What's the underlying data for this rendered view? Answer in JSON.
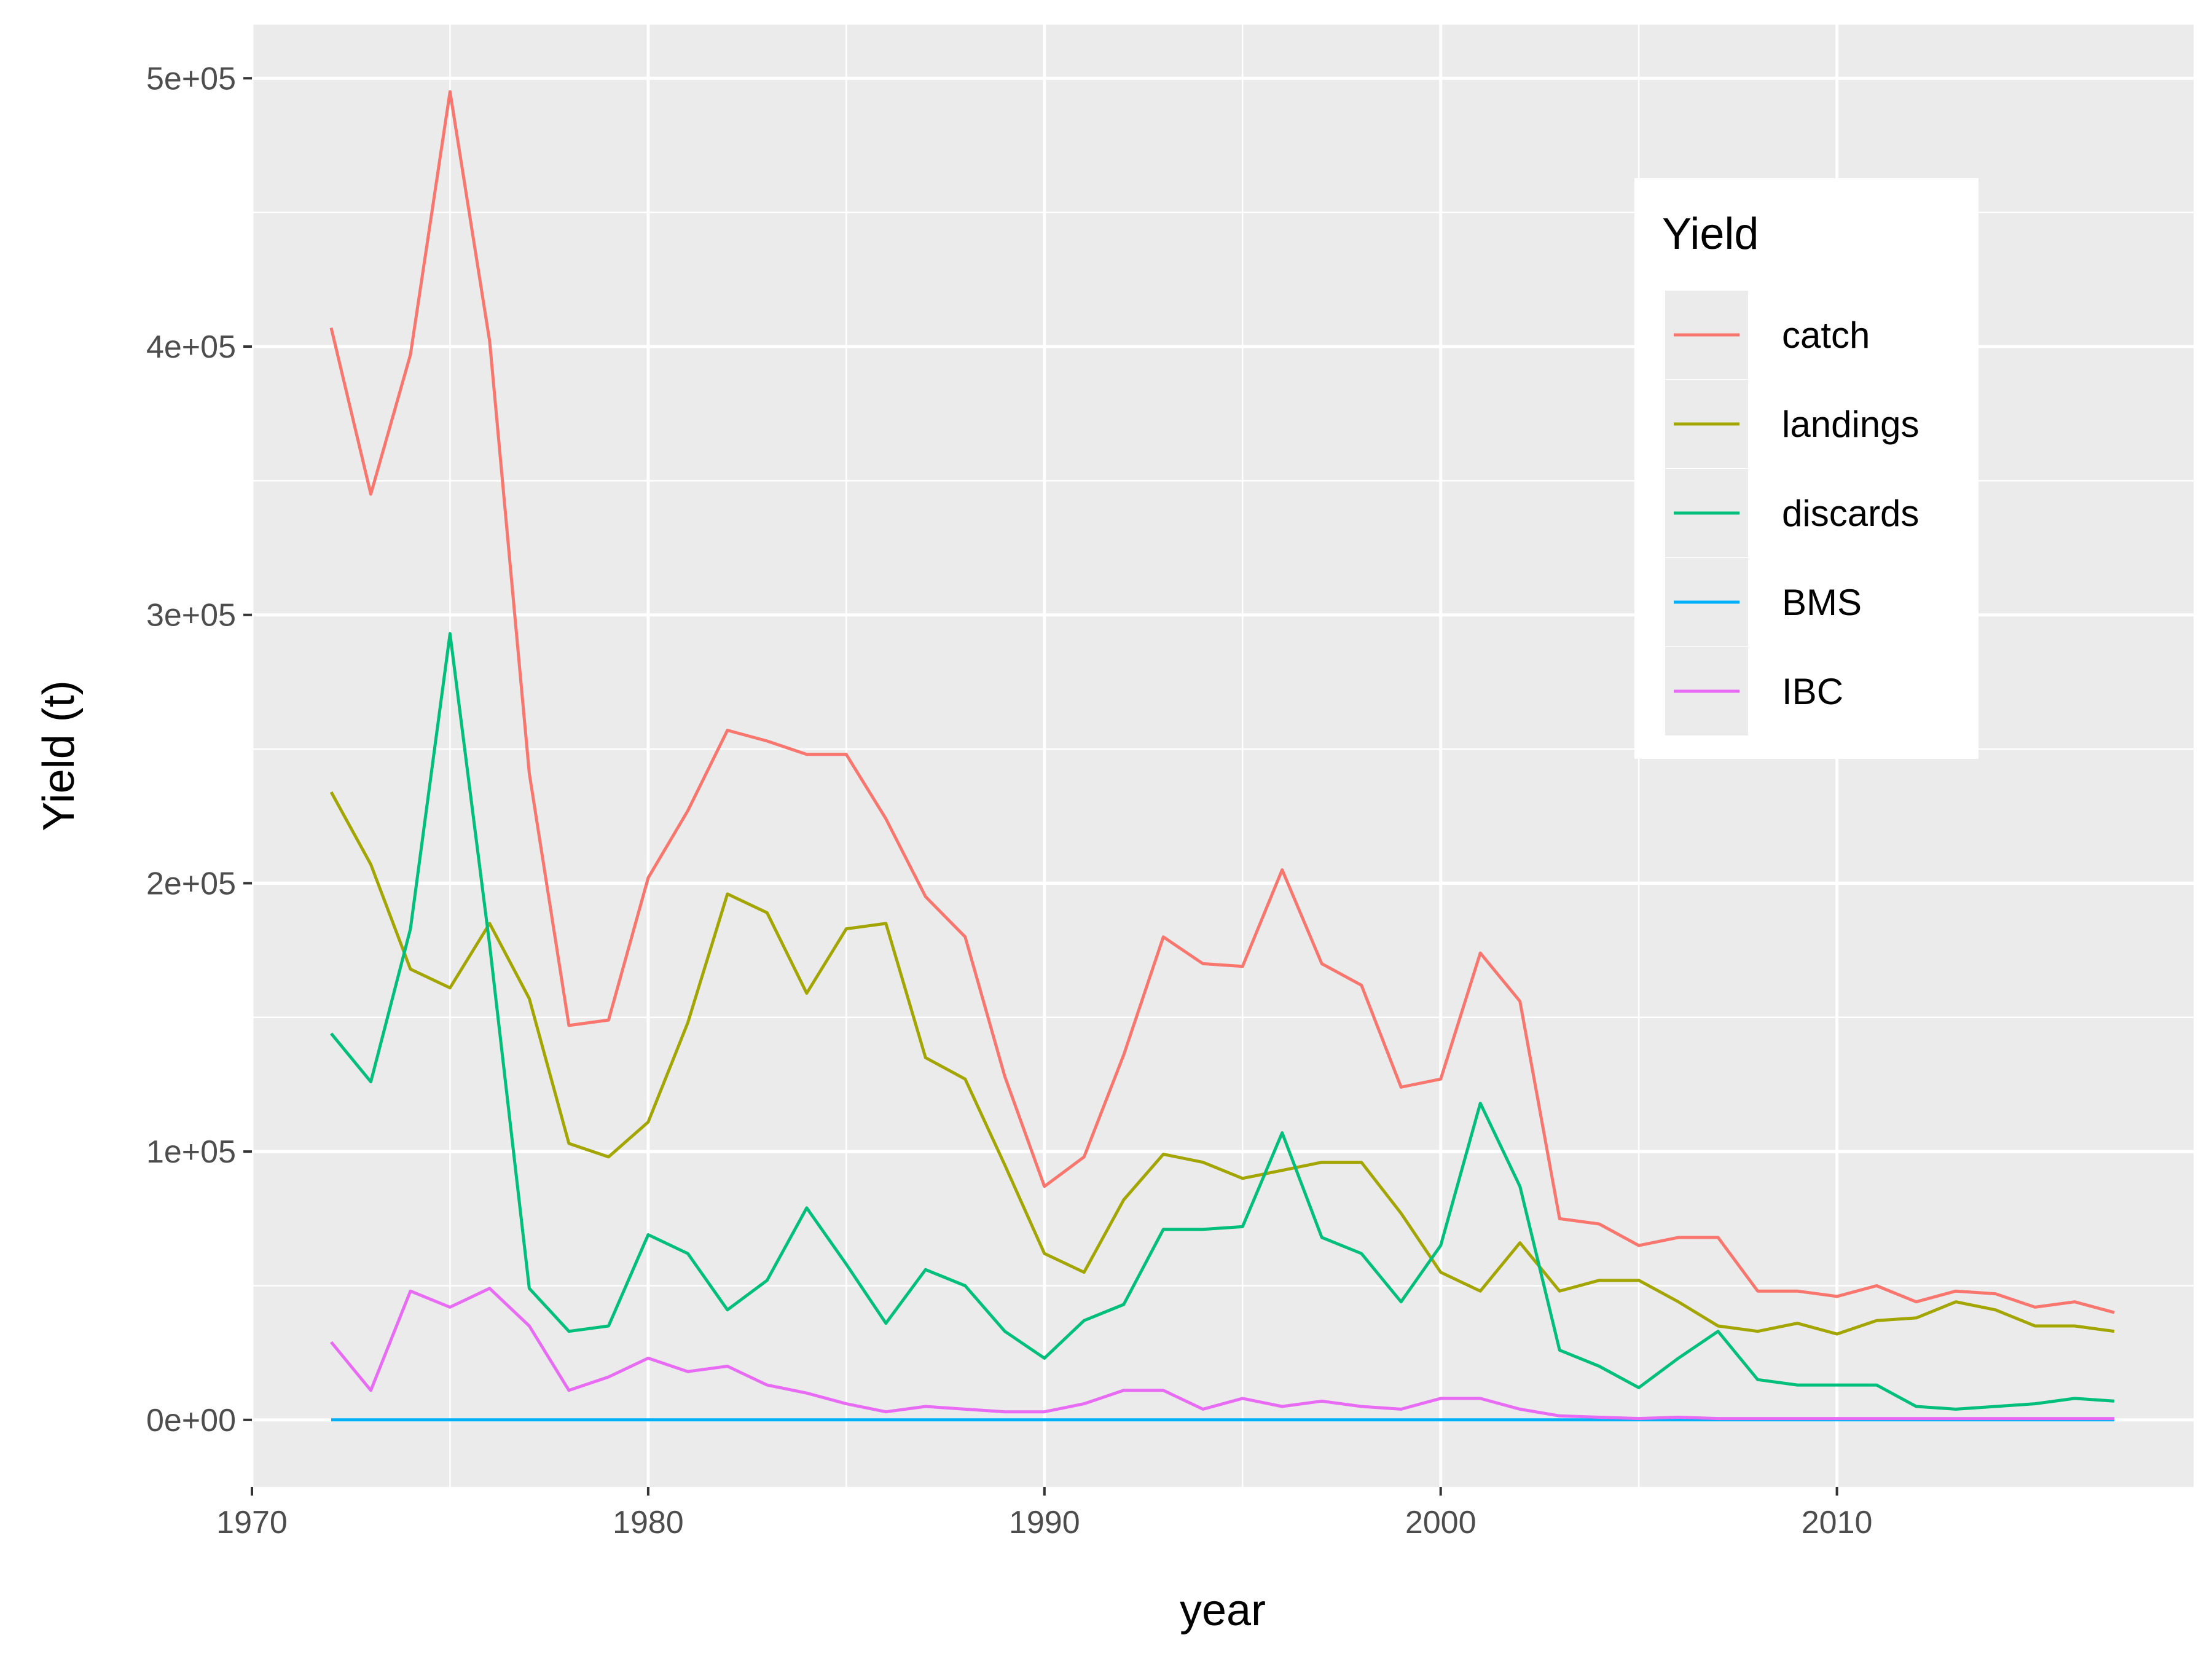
{
  "chart_data": {
    "type": "line",
    "xlabel": "year",
    "ylabel": "Yield (t)",
    "xlim": [
      1970,
      2019
    ],
    "ylim": [
      -25000,
      520000
    ],
    "x_ticks": [
      1970,
      1980,
      1990,
      2000,
      2010
    ],
    "x_tick_labels": [
      "1970",
      "1980",
      "1990",
      "2000",
      "2010"
    ],
    "y_ticks": [
      0,
      100000,
      200000,
      300000,
      400000,
      500000
    ],
    "y_tick_labels": [
      "0e+00",
      "1e+05",
      "2e+05",
      "3e+05",
      "4e+05",
      "5e+05"
    ],
    "grid": true,
    "background": "#ebebeb",
    "legend": {
      "title": "Yield",
      "position": "top-right"
    },
    "x": [
      1972,
      1973,
      1974,
      1975,
      1976,
      1977,
      1978,
      1979,
      1980,
      1981,
      1982,
      1983,
      1984,
      1985,
      1986,
      1987,
      1988,
      1989,
      1990,
      1991,
      1992,
      1993,
      1994,
      1995,
      1996,
      1997,
      1998,
      1999,
      2000,
      2001,
      2002,
      2003,
      2004,
      2005,
      2006,
      2007,
      2008,
      2009,
      2010,
      2011,
      2012,
      2013,
      2014,
      2015,
      2016,
      2017
    ],
    "series": [
      {
        "name": "catch",
        "color": "#f8766d",
        "values": [
          407000,
          345000,
          397000,
          495000,
          402000,
          241000,
          147000,
          149000,
          202000,
          227000,
          257000,
          253000,
          248000,
          248000,
          224000,
          195000,
          180000,
          128000,
          87000,
          98000,
          136000,
          180000,
          170000,
          169000,
          205000,
          170000,
          162000,
          124000,
          127000,
          174000,
          156000,
          75000,
          73000,
          65000,
          68000,
          68000,
          48000,
          48000,
          46000,
          50000,
          44000,
          48000,
          47000,
          42000,
          44000,
          40000
        ]
      },
      {
        "name": "landings",
        "color": "#a3a500",
        "values": [
          234000,
          207000,
          168000,
          161000,
          185000,
          157000,
          103000,
          98000,
          111000,
          148000,
          196000,
          189000,
          159000,
          183000,
          185000,
          135000,
          127000,
          95000,
          62000,
          55000,
          82000,
          99000,
          96000,
          90000,
          93000,
          96000,
          96000,
          77000,
          55000,
          48000,
          66000,
          48000,
          52000,
          52000,
          44000,
          35000,
          33000,
          36000,
          32000,
          37000,
          38000,
          44000,
          41000,
          35000,
          35000,
          33000
        ]
      },
      {
        "name": "discards",
        "color": "#00bf7d",
        "values": [
          144000,
          126000,
          183000,
          293000,
          177000,
          49000,
          33000,
          35000,
          69000,
          62000,
          41000,
          52000,
          79000,
          58000,
          36000,
          56000,
          50000,
          33000,
          23000,
          37000,
          43000,
          71000,
          71000,
          72000,
          107000,
          68000,
          62000,
          44000,
          65000,
          118000,
          87000,
          26000,
          20000,
          12000,
          23000,
          33000,
          15000,
          13000,
          13000,
          13000,
          5000,
          4000,
          5000,
          6000,
          8000,
          7000
        ]
      },
      {
        "name": "BMS",
        "color": "#00b0f6",
        "values": [
          0,
          0,
          0,
          0,
          0,
          0,
          0,
          0,
          0,
          0,
          0,
          0,
          0,
          0,
          0,
          0,
          0,
          0,
          0,
          0,
          0,
          0,
          0,
          0,
          0,
          0,
          0,
          0,
          0,
          0,
          0,
          0,
          0,
          0,
          0,
          0,
          0,
          0,
          0,
          0,
          0,
          0,
          0,
          0,
          0,
          0
        ]
      },
      {
        "name": "IBC",
        "color": "#e76bf3",
        "values": [
          29000,
          11000,
          48000,
          42000,
          49000,
          35000,
          11000,
          16000,
          23000,
          18000,
          20000,
          13000,
          10000,
          6000,
          3000,
          5000,
          4000,
          3000,
          3000,
          6000,
          11000,
          11000,
          4000,
          8000,
          5000,
          7000,
          5000,
          4000,
          8000,
          8000,
          4000,
          1500,
          1000,
          500,
          1000,
          500,
          500,
          500,
          500,
          500,
          500,
          500,
          500,
          500,
          500,
          500
        ]
      }
    ]
  }
}
